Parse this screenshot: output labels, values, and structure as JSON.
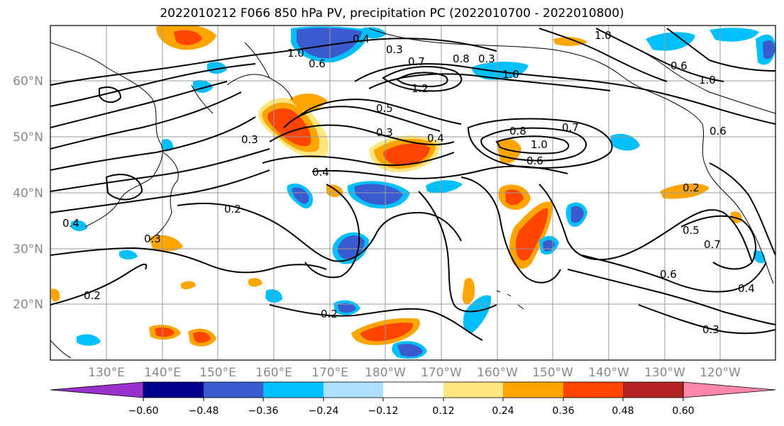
{
  "title": "2022010212 F066 850 hPa PV, precipitation PC (2022010700 - 2022010800)",
  "lat_labels": [
    "60°N",
    "50°N",
    "40°N",
    "30°N",
    "20°N"
  ],
  "lon_labels": [
    "130°E",
    "140°E",
    "150°E",
    "160°E",
    "170°E",
    "180°W",
    "170°W",
    "160°W",
    "150°W",
    "140°W",
    "130°W",
    "120°W"
  ],
  "colorbar": {
    "colors": [
      "#9932cc",
      "#00008b",
      "#3a5bcd",
      "#00bfff",
      "#b0e0ff",
      "#ffffff",
      "#ffe680",
      "#ffa500",
      "#ff4500",
      "#b22222",
      "#ff88aa"
    ],
    "tick_labels": [
      "−0.60",
      "−0.48",
      "−0.36",
      "−0.24",
      "−0.12",
      "0.12",
      "0.24",
      "0.36",
      "0.48",
      "0.60"
    ]
  },
  "contour_labels": [
    "1.0",
    "0.6",
    "0.4",
    "0.3",
    "0.7",
    "0.8",
    "0.3",
    "1.2",
    "1.0",
    "0.5",
    "0.3",
    "0.4",
    "0.8",
    "1.0",
    "0.6",
    "0.7",
    "0.3",
    "0.4",
    "0.2",
    "0.3",
    "0.4",
    "0.2",
    "0.2",
    "0.5",
    "0.7",
    "0.6",
    "0.4",
    "0.3",
    "0.6",
    "1.0",
    "0.6",
    "1.0",
    "0.2"
  ]
}
